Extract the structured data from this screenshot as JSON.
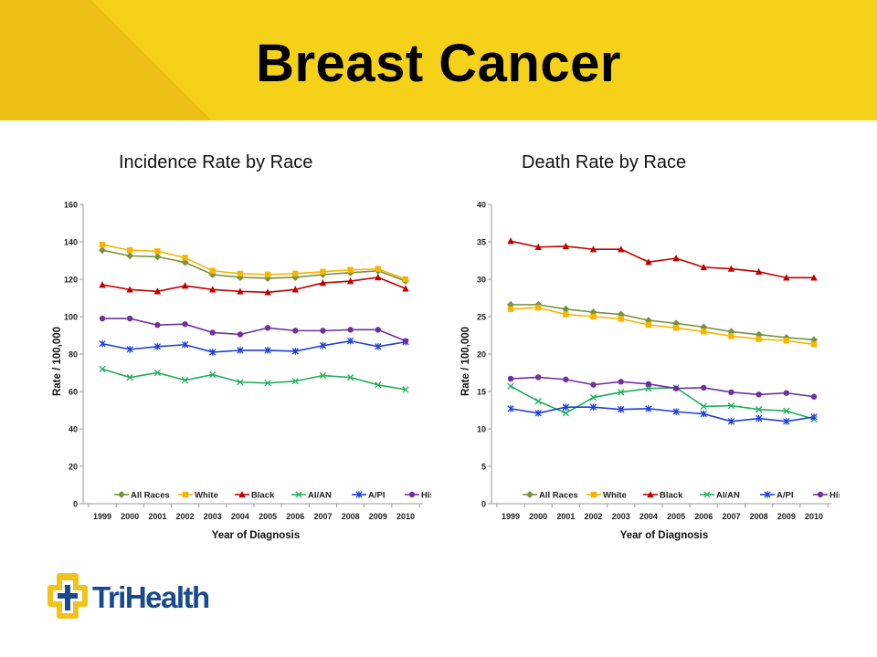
{
  "slide": {
    "title": "Breast Cancer",
    "logo_text": "TriHealth",
    "banner_color": "#f5d11a",
    "banner_accent_color": "#efbe14"
  },
  "legend_markers": {
    "All Races": "diamond",
    "White": "square",
    "Black": "triangle",
    "AI/AN": "x",
    "A/PI": "star",
    "Hispanic†": "circle"
  },
  "chart_data": [
    {
      "type": "line",
      "caption": "Incidence Rate by Race",
      "xlabel": "Year of Diagnosis",
      "ylabel": "Rate / 100,000",
      "ylim": [
        0,
        160
      ],
      "yticks": [
        0,
        20,
        40,
        60,
        80,
        100,
        120,
        140,
        160
      ],
      "x": [
        "1999",
        "2000",
        "2001",
        "2002",
        "2003",
        "2004",
        "2005",
        "2006",
        "2007",
        "2008",
        "2009",
        "2010"
      ],
      "grid": false,
      "legend_position": "bottom",
      "series": [
        {
          "name": "All Races",
          "color": "#77933c",
          "values": [
            135.5,
            132.5,
            132,
            129,
            122.5,
            121,
            120.5,
            121,
            122.5,
            123.5,
            124.5,
            119
          ]
        },
        {
          "name": "White",
          "color": "#f7b500",
          "values": [
            138.5,
            135.5,
            135,
            131.5,
            124.5,
            123,
            122.5,
            123,
            124,
            125,
            125.5,
            120
          ]
        },
        {
          "name": "Black",
          "color": "#c00000",
          "values": [
            117,
            114.5,
            113.5,
            116.5,
            114.5,
            113.5,
            113,
            114.5,
            118,
            119,
            121,
            115
          ]
        },
        {
          "name": "AI/AN",
          "color": "#1fae5a",
          "values": [
            72,
            67.5,
            70,
            66,
            69,
            65,
            64.5,
            65.5,
            68.5,
            67.5,
            63.5,
            61
          ]
        },
        {
          "name": "A/PI",
          "color": "#1f3fd8",
          "values": [
            85.5,
            82.5,
            84,
            85,
            81,
            82,
            82,
            81.5,
            84.5,
            87,
            84,
            86.5
          ]
        },
        {
          "name": "Hispanic†",
          "color": "#7030a0",
          "values": [
            99,
            99,
            95.5,
            96,
            91.5,
            90.5,
            94,
            92.5,
            92.5,
            93,
            93,
            87
          ]
        }
      ]
    },
    {
      "type": "line",
      "caption": "Death Rate by Race",
      "xlabel": "Year of Diagnosis",
      "ylabel": "Rate / 100,000",
      "ylim": [
        0,
        40
      ],
      "yticks": [
        0,
        5,
        10,
        15,
        20,
        25,
        30,
        35,
        40
      ],
      "x": [
        "1999",
        "2000",
        "2001",
        "2002",
        "2003",
        "2004",
        "2005",
        "2006",
        "2007",
        "2008",
        "2009",
        "2010"
      ],
      "grid": false,
      "legend_position": "bottom",
      "series": [
        {
          "name": "All Races",
          "color": "#77933c",
          "values": [
            26.6,
            26.6,
            26,
            25.6,
            25.3,
            24.5,
            24.1,
            23.6,
            23,
            22.6,
            22.2,
            21.9
          ]
        },
        {
          "name": "White",
          "color": "#f7b500",
          "values": [
            26,
            26.2,
            25.3,
            25,
            24.7,
            23.9,
            23.5,
            23,
            22.4,
            22,
            21.8,
            21.3
          ]
        },
        {
          "name": "Black",
          "color": "#c00000",
          "values": [
            35.1,
            34.3,
            34.4,
            34,
            34,
            32.3,
            32.8,
            31.6,
            31.4,
            31,
            30.2,
            30.2
          ]
        },
        {
          "name": "AI/AN",
          "color": "#1fae5a",
          "values": [
            15.7,
            13.7,
            12.1,
            14.2,
            14.9,
            15.4,
            15.5,
            13,
            13.1,
            12.6,
            12.4,
            11.3
          ]
        },
        {
          "name": "A/PI",
          "color": "#1f3fd8",
          "values": [
            12.7,
            12.1,
            12.9,
            12.9,
            12.6,
            12.7,
            12.3,
            12,
            11,
            11.4,
            11,
            11.6
          ]
        },
        {
          "name": "Hispanic†",
          "color": "#7030a0",
          "values": [
            16.7,
            16.9,
            16.6,
            15.9,
            16.3,
            16,
            15.4,
            15.5,
            14.9,
            14.6,
            14.8,
            14.3
          ]
        }
      ]
    }
  ]
}
